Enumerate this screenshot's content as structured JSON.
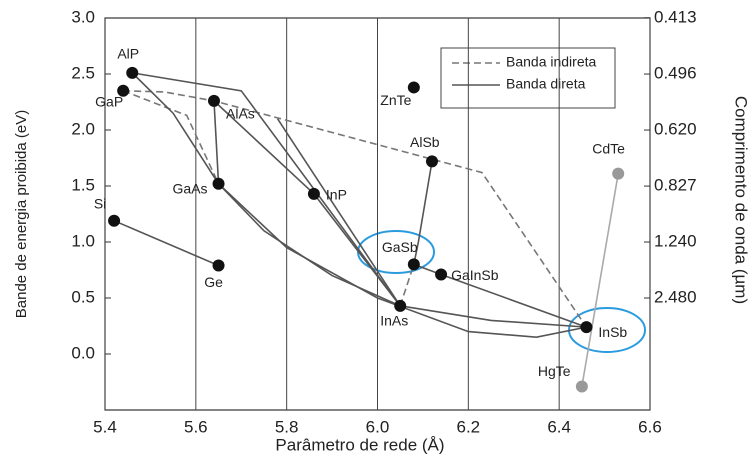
{
  "chart_data": {
    "type": "scatter",
    "xlabel": "Parâmetro de rede (Å)",
    "ylabel": "Bande de energia proibida (eV)",
    "y2label": "Comprimento de onda (µm)",
    "xlim": [
      5.4,
      6.6
    ],
    "ylim": [
      -0.5,
      3.0
    ],
    "xticks": [
      5.4,
      5.6,
      5.8,
      {
        "value": 6,
        "label": "6.0"
      },
      6.2,
      6.4,
      6.6
    ],
    "yticks": [
      {
        "value": 3,
        "label": "3.0"
      },
      2.5,
      {
        "value": 2,
        "label": "2.0"
      },
      1.5,
      {
        "value": 1,
        "label": "1.0"
      },
      0.5,
      {
        "value": 0,
        "label": "0.0"
      }
    ],
    "y2scale": "reciprocal",
    "y2ticks": [
      0.413,
      0.496,
      {
        "value": 0.62,
        "label": "0.620"
      },
      0.827,
      {
        "value": 1.24,
        "label": "1.240"
      },
      {
        "value": 2.48,
        "label": "2.480"
      }
    ],
    "grid": "x",
    "legend": "upper right",
    "points": {
      "names": [
        "AlP",
        "GaP",
        "AlAs",
        "ZnTe",
        "AlSb",
        "CdTe",
        "GaAs",
        "InP",
        "Si",
        "GaSb",
        "GaInSb",
        "Ge",
        "InAs",
        "InSb",
        "HgTe"
      ],
      "x": [
        5.46,
        5.44,
        5.64,
        6.08,
        6.12,
        6.53,
        5.65,
        5.86,
        5.42,
        6.08,
        6.14,
        5.65,
        6.05,
        6.46,
        6.45
      ],
      "y": [
        2.51,
        2.35,
        2.26,
        2.38,
        1.72,
        1.61,
        1.52,
        1.43,
        1.19,
        0.8,
        0.71,
        0.79,
        0.43,
        0.24,
        -0.29
      ],
      "colors": [
        "#111",
        "#111",
        "#111",
        "#111",
        "#111",
        "#999",
        "#111",
        "#111",
        "#111",
        "#111",
        "#111",
        "#111",
        "#111",
        "#111",
        "#999"
      ]
    },
    "series": [
      {
        "name": "Banda indireta",
        "color": "#777",
        "dashed": true,
        "segments": [
          {
            "x": [
              5.44,
              5.53,
              5.64,
              6.23,
              6.46
            ],
            "y": [
              2.35,
              2.34,
              2.26,
              1.62,
              0.24
            ]
          },
          {
            "x": [
              5.44,
              5.58,
              5.65
            ],
            "y": [
              2.35,
              2.13,
              1.52
            ]
          },
          {
            "x": [
              6.05,
              6.08
            ],
            "y": [
              0.43,
              0.8
            ]
          }
        ]
      },
      {
        "name": "Banda direta",
        "color": "#555",
        "dashed": false,
        "segments": [
          {
            "x": [
              5.42,
              5.65
            ],
            "y": [
              1.19,
              0.79
            ]
          },
          {
            "x": [
              5.46,
              5.7,
              6.05
            ],
            "y": [
              2.51,
              2.35,
              0.43
            ]
          },
          {
            "x": [
              5.46,
              5.55,
              5.65
            ],
            "y": [
              2.51,
              2.15,
              1.52
            ]
          },
          {
            "x": [
              5.64,
              5.65
            ],
            "y": [
              2.26,
              1.52
            ]
          },
          {
            "x": [
              5.64,
              5.86
            ],
            "y": [
              2.26,
              1.43
            ]
          },
          {
            "x": [
              5.78,
              6.05
            ],
            "y": [
              2.1,
              0.43
            ]
          },
          {
            "x": [
              5.65,
              5.75,
              5.9,
              6.05
            ],
            "y": [
              1.52,
              1.1,
              0.7,
              0.43
            ]
          },
          {
            "x": [
              5.86,
              6.05
            ],
            "y": [
              1.43,
              0.43
            ]
          },
          {
            "x": [
              5.65,
              5.8,
              6.0,
              6.2,
              6.35,
              6.46
            ],
            "y": [
              1.52,
              0.95,
              0.5,
              0.2,
              0.15,
              0.24
            ]
          },
          {
            "x": [
              6.05,
              6.25,
              6.46
            ],
            "y": [
              0.43,
              0.3,
              0.24
            ]
          },
          {
            "x": [
              6.12,
              6.09,
              6.08
            ],
            "y": [
              1.72,
              1.0,
              0.8
            ]
          },
          {
            "x": [
              6.08,
              6.14,
              6.46
            ],
            "y": [
              0.8,
              0.71,
              0.24
            ]
          }
        ]
      },
      {
        "color": "#aaa",
        "dashed": false,
        "segments": [
          {
            "x": [
              6.53,
              6.45
            ],
            "y": [
              1.61,
              -0.29
            ]
          }
        ]
      }
    ]
  }
}
